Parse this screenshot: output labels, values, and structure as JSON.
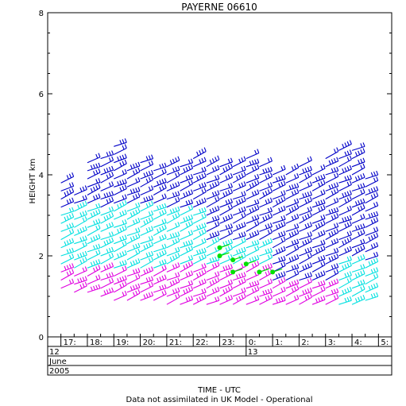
{
  "chart_data": {
    "type": "wind-barb-profile",
    "title": "PAYERNE 06610",
    "ylabel": "HEIGHT km",
    "xlabel": "TIME - UTC",
    "footnote": "Data not assimilated in UK Model - Operational",
    "ylim": [
      0,
      8
    ],
    "yticks": [
      "0",
      "2",
      "4",
      "6",
      "8"
    ],
    "time_labels": [
      "17:",
      "18:",
      "19:",
      "20:",
      "21:",
      "22:",
      "23:",
      "0:",
      "1:",
      "2:",
      "3:",
      "4:",
      "5:"
    ],
    "date_rows": [
      {
        "first": "12",
        "second": "13"
      },
      {
        "first": "June",
        "second": ""
      },
      {
        "first": "2005",
        "second": ""
      }
    ],
    "hours_range": [
      16.5,
      29.5
    ],
    "colors": {
      "low": "#e000e0",
      "mid": "#00e0e0",
      "high": "#0000c8",
      "flag": "#00e000"
    },
    "columns": [
      {
        "t": 17.0,
        "lo": 1.2,
        "hi": 3.8
      },
      {
        "t": 17.5,
        "lo": 1.1,
        "hi": 3.6
      },
      {
        "t": 18.0,
        "lo": 1.1,
        "hi": 4.4
      },
      {
        "t": 18.5,
        "lo": 1.0,
        "hi": 4.4
      },
      {
        "t": 19.0,
        "lo": 0.9,
        "hi": 4.7
      },
      {
        "t": 19.5,
        "lo": 0.9,
        "hi": 4.1
      },
      {
        "t": 20.0,
        "lo": 0.9,
        "hi": 4.4
      },
      {
        "t": 20.5,
        "lo": 0.9,
        "hi": 4.1
      },
      {
        "t": 21.0,
        "lo": 0.8,
        "hi": 4.3
      },
      {
        "t": 21.5,
        "lo": 0.8,
        "hi": 4.3
      },
      {
        "t": 22.0,
        "lo": 0.8,
        "hi": 4.4
      },
      {
        "t": 22.5,
        "lo": 0.8,
        "hi": 4.2
      },
      {
        "t": 23.0,
        "lo": 0.8,
        "hi": 4.2
      },
      {
        "t": 23.5,
        "lo": 0.8,
        "hi": 4.2
      },
      {
        "t": 24.0,
        "lo": 0.8,
        "hi": 4.4
      },
      {
        "t": 24.5,
        "lo": 0.8,
        "hi": 4.2
      },
      {
        "t": 25.0,
        "lo": 0.8,
        "hi": 4.0
      },
      {
        "t": 25.5,
        "lo": 0.8,
        "hi": 4.0
      },
      {
        "t": 26.0,
        "lo": 0.8,
        "hi": 4.2
      },
      {
        "t": 26.5,
        "lo": 0.8,
        "hi": 4.0
      },
      {
        "t": 27.0,
        "lo": 0.8,
        "hi": 4.4
      },
      {
        "t": 27.5,
        "lo": 0.8,
        "hi": 4.7
      },
      {
        "t": 28.0,
        "lo": 0.8,
        "hi": 4.7
      },
      {
        "t": 28.5,
        "lo": 0.9,
        "hi": 4.0
      }
    ],
    "flags": [
      {
        "t": 23.0,
        "h": 2.2
      },
      {
        "t": 23.0,
        "h": 2.0
      },
      {
        "t": 23.5,
        "h": 1.9
      },
      {
        "t": 23.5,
        "h": 1.6
      },
      {
        "t": 24.0,
        "h": 1.8
      },
      {
        "t": 24.5,
        "h": 1.6
      },
      {
        "t": 25.0,
        "h": 1.6
      }
    ]
  }
}
